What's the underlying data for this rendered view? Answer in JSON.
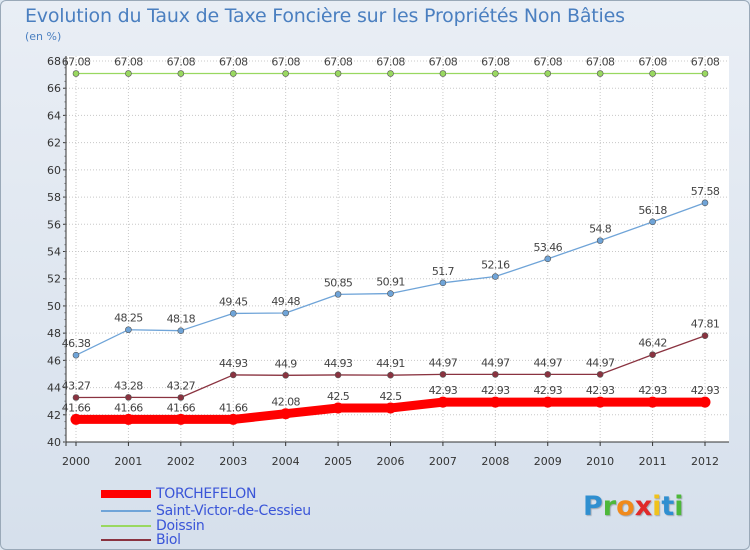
{
  "title": "Evolution du Taux de Taxe Foncière sur les Propriétés Non Bâties",
  "unit": "(en %)",
  "logo": {
    "text": "Proxiti",
    "colors": [
      "#2f8fd0",
      "#4db83a",
      "#f08a1c",
      "#e02a2a",
      "#f0c21c",
      "#2f8fd0",
      "#4db83a"
    ]
  },
  "chart_data": {
    "type": "line",
    "x": [
      "2000",
      "2001",
      "2002",
      "2003",
      "2004",
      "2005",
      "2006",
      "2007",
      "2008",
      "2009",
      "2010",
      "2011",
      "2012"
    ],
    "ylim": [
      40,
      68
    ],
    "yticks": [
      40,
      42,
      44,
      46,
      48,
      50,
      52,
      54,
      56,
      58,
      60,
      62,
      64,
      66,
      68
    ],
    "grid": true,
    "legend_position": "bottom-left",
    "series": [
      {
        "name": "TORCHEFELON",
        "color": "#ff0000",
        "values": [
          41.66,
          41.66,
          41.66,
          41.66,
          42.08,
          42.5,
          42.5,
          42.93,
          42.93,
          42.93,
          42.93,
          42.93,
          42.93
        ],
        "labels": [
          "41.66",
          "41.66",
          "41.66",
          "41.66",
          "42.08",
          "42.5",
          "42.5",
          "42.93",
          "42.93",
          "42.93",
          "42.93",
          "42.93",
          "42.93"
        ]
      },
      {
        "name": "Saint-Victor-de-Cessieu",
        "color": "#6fa4d8",
        "values": [
          46.38,
          48.25,
          48.18,
          49.45,
          49.48,
          50.85,
          50.91,
          51.7,
          52.16,
          53.46,
          54.8,
          56.18,
          57.58
        ],
        "labels": [
          "46.38",
          "48.25",
          "48.18",
          "49.45",
          "49.48",
          "50.85",
          "50.91",
          "51.7",
          "52.16",
          "53.46",
          "54.8",
          "56.18",
          "57.58"
        ]
      },
      {
        "name": "Doissin",
        "color": "#99d860",
        "values": [
          67.08,
          67.08,
          67.08,
          67.08,
          67.08,
          67.08,
          67.08,
          67.08,
          67.08,
          67.08,
          67.08,
          67.08,
          67.08
        ],
        "labels": [
          "67.08",
          "67.08",
          "67.08",
          "67.08",
          "67.08",
          "67.08",
          "67.08",
          "67.08",
          "67.08",
          "67.08",
          "67.08",
          "67.08",
          "67.08"
        ]
      },
      {
        "name": "Biol",
        "color": "#8a3340",
        "values": [
          43.27,
          43.28,
          43.27,
          44.93,
          44.9,
          44.93,
          44.91,
          44.97,
          44.97,
          44.97,
          44.97,
          46.42,
          47.81
        ],
        "labels": [
          "43.27",
          "43.28",
          "43.27",
          "44.93",
          "44.9",
          "44.93",
          "44.91",
          "44.97",
          "44.97",
          "44.97",
          "44.97",
          "46.42",
          "47.81"
        ]
      }
    ]
  }
}
